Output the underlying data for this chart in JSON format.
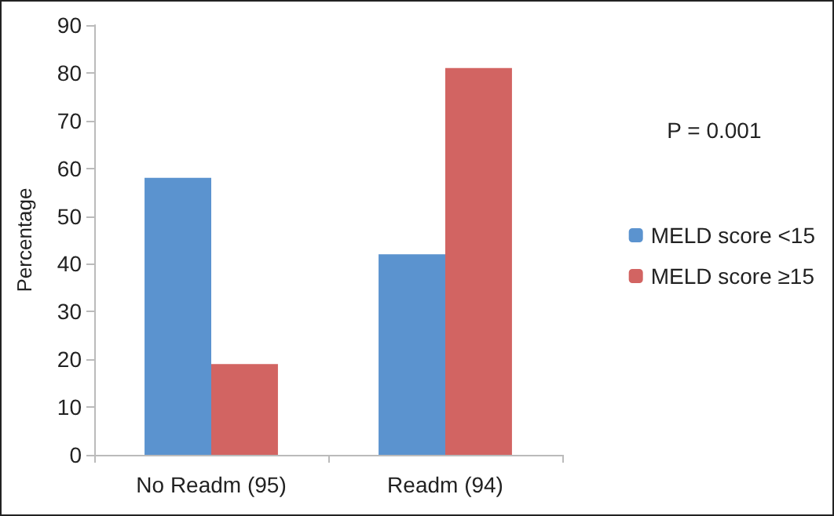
{
  "chart_data": {
    "type": "bar",
    "ylabel": "Percentage",
    "categories": [
      "No Readm (95)",
      "Readm (94)"
    ],
    "series": [
      {
        "name": "MELD score <15",
        "color": "#5b93cf",
        "values": [
          58,
          42
        ]
      },
      {
        "name": "MELD score ≥15",
        "color": "#d26462",
        "values": [
          19,
          81
        ]
      }
    ],
    "ylim": [
      0,
      90
    ],
    "yticks": [
      0,
      10,
      20,
      30,
      40,
      50,
      60,
      70,
      80,
      90
    ],
    "grid": false,
    "legend": "right",
    "annotations": [
      "P = 0.001"
    ]
  }
}
